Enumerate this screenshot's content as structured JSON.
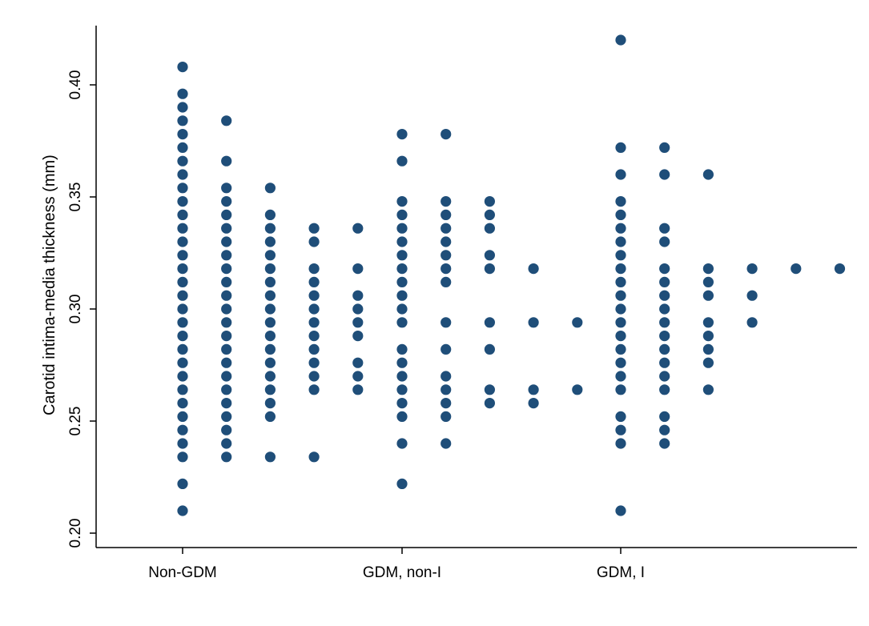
{
  "chart_data": {
    "type": "scatter",
    "title": "",
    "xlabel": "",
    "ylabel": "Carotid intima-media thickness (mm)",
    "ylim": [
      0.198,
      0.424
    ],
    "y_ticks": [
      0.2,
      0.25,
      0.3,
      0.35,
      0.4
    ],
    "y_tick_labels": [
      "0.20",
      "0.25",
      "0.30",
      "0.35",
      "0.40"
    ],
    "categories": [
      "Non-GDM",
      "GDM, non-I",
      "GDM, I"
    ],
    "grid": false,
    "legend": "none",
    "colors": {
      "marker": "#1f4e79",
      "axis": "#000000"
    },
    "groups": [
      {
        "category": "Non-GDM",
        "columns": [
          [
            0.408,
            0.396,
            0.39,
            0.384,
            0.378,
            0.372,
            0.366,
            0.36,
            0.354,
            0.348,
            0.342,
            0.336,
            0.33,
            0.324,
            0.318,
            0.312,
            0.306,
            0.3,
            0.294,
            0.288,
            0.282,
            0.276,
            0.27,
            0.264,
            0.258,
            0.252,
            0.246,
            0.24,
            0.234,
            0.222,
            0.21
          ],
          [
            0.384,
            0.366,
            0.354,
            0.348,
            0.342,
            0.336,
            0.33,
            0.324,
            0.318,
            0.312,
            0.306,
            0.3,
            0.294,
            0.288,
            0.282,
            0.276,
            0.27,
            0.264,
            0.258,
            0.252,
            0.246,
            0.24,
            0.234
          ],
          [
            0.354,
            0.342,
            0.336,
            0.33,
            0.324,
            0.318,
            0.312,
            0.306,
            0.3,
            0.294,
            0.288,
            0.282,
            0.276,
            0.27,
            0.264,
            0.258,
            0.252,
            0.234
          ],
          [
            0.336,
            0.33,
            0.318,
            0.312,
            0.306,
            0.3,
            0.294,
            0.288,
            0.282,
            0.276,
            0.27,
            0.264,
            0.234
          ],
          [
            0.336,
            0.318,
            0.306,
            0.3,
            0.294,
            0.288,
            0.276,
            0.27,
            0.264
          ]
        ]
      },
      {
        "category": "GDM, non-I",
        "columns": [
          [
            0.378,
            0.366,
            0.348,
            0.342,
            0.336,
            0.33,
            0.324,
            0.318,
            0.312,
            0.306,
            0.3,
            0.294,
            0.282,
            0.276,
            0.27,
            0.264,
            0.258,
            0.252,
            0.24,
            0.222
          ],
          [
            0.378,
            0.348,
            0.342,
            0.336,
            0.33,
            0.324,
            0.318,
            0.312,
            0.294,
            0.282,
            0.27,
            0.264,
            0.258,
            0.252,
            0.24
          ],
          [
            0.348,
            0.342,
            0.336,
            0.324,
            0.318,
            0.294,
            0.282,
            0.264,
            0.258
          ],
          [
            0.318,
            0.294,
            0.264,
            0.258
          ],
          [
            0.294,
            0.264
          ]
        ]
      },
      {
        "category": "GDM, I",
        "columns": [
          [
            0.42,
            0.372,
            0.36,
            0.348,
            0.342,
            0.336,
            0.33,
            0.324,
            0.318,
            0.312,
            0.306,
            0.3,
            0.294,
            0.288,
            0.282,
            0.276,
            0.27,
            0.264,
            0.252,
            0.246,
            0.24,
            0.21
          ],
          [
            0.372,
            0.36,
            0.336,
            0.33,
            0.318,
            0.312,
            0.306,
            0.3,
            0.294,
            0.288,
            0.282,
            0.276,
            0.27,
            0.264,
            0.252,
            0.246,
            0.24
          ],
          [
            0.36,
            0.318,
            0.312,
            0.306,
            0.294,
            0.288,
            0.282,
            0.276,
            0.264
          ],
          [
            0.318,
            0.306,
            0.294
          ],
          [
            0.318
          ],
          [
            0.318
          ]
        ]
      }
    ]
  }
}
